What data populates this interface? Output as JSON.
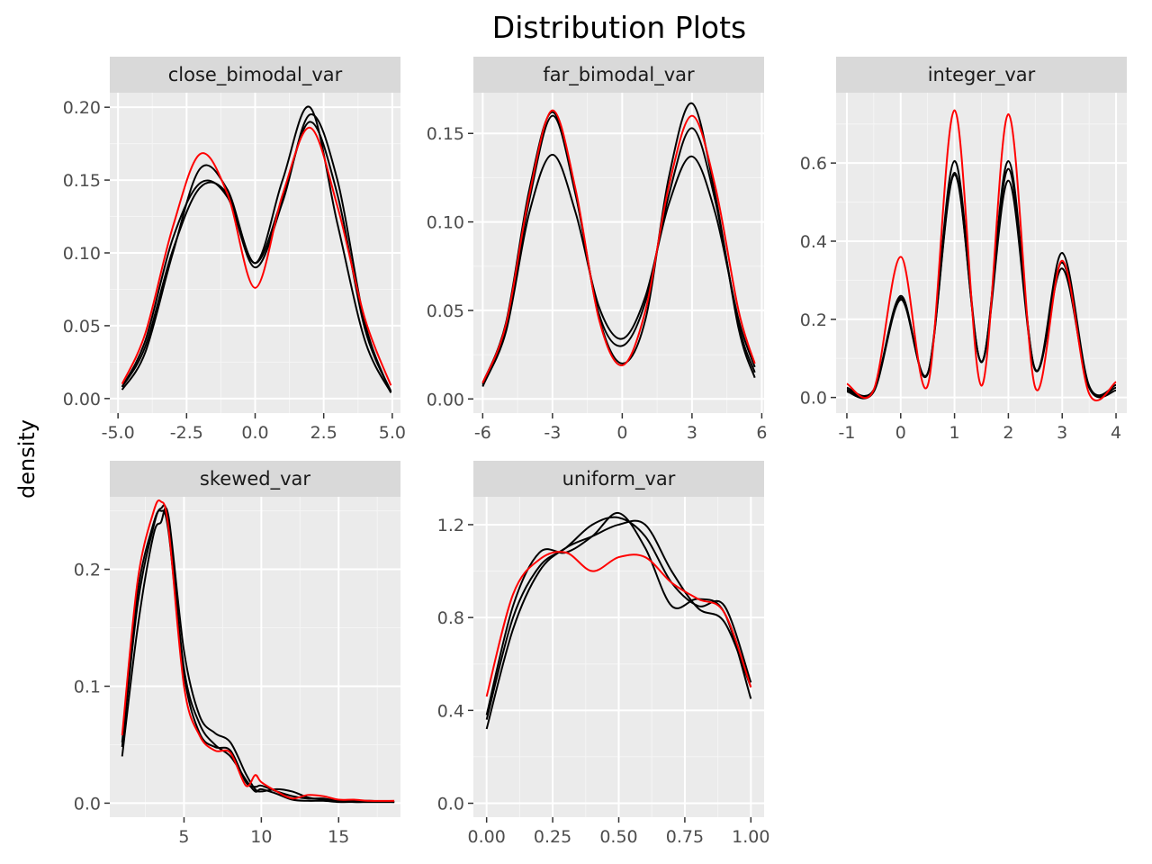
{
  "chart_data": {
    "type": "line",
    "title": "Distribution Plots",
    "ylabel": "density",
    "xlabel": "",
    "grid": true,
    "colors": {
      "panel_bg": "#EBEBEB",
      "strip_bg": "#D9D9D9",
      "grid_major": "#FFFFFF",
      "grid_minor": "#F5F5F5",
      "highlight": "#FF0000",
      "default": "#000000"
    },
    "facets": [
      {
        "label": "close_bimodal_var",
        "xlim": [
          -5.3,
          5.3
        ],
        "ylim": [
          -0.01,
          0.21
        ],
        "x_ticks": [
          -5,
          -2.5,
          0,
          2.5,
          5
        ],
        "x_tick_labels": [
          "-5.0",
          "-2.5",
          "0.0",
          "2.5",
          "5.0"
        ],
        "y_ticks": [
          0,
          0.05,
          0.1,
          0.15,
          0.2
        ],
        "y_tick_labels": [
          "0.00",
          "0.05",
          "0.10",
          "0.15",
          "0.20"
        ],
        "x": [
          -4.85,
          -4,
          -3,
          -2,
          -1,
          0,
          1,
          2,
          3,
          4,
          4.95
        ],
        "series": [
          {
            "color": "#FF0000",
            "values": [
              0.01,
              0.045,
              0.118,
              0.168,
              0.14,
              0.076,
              0.14,
              0.186,
              0.132,
              0.055,
              0.009
            ]
          },
          {
            "color": "#000000",
            "values": [
              0.008,
              0.036,
              0.102,
              0.145,
              0.14,
              0.093,
              0.138,
              0.19,
              0.14,
              0.048,
              0.005
            ]
          },
          {
            "color": "#000000",
            "values": [
              0.006,
              0.032,
              0.1,
              0.158,
              0.143,
              0.093,
              0.15,
              0.2,
              0.12,
              0.04,
              0.004
            ]
          },
          {
            "color": "#000000",
            "values": [
              0.008,
              0.04,
              0.11,
              0.148,
              0.138,
              0.09,
              0.135,
              0.195,
              0.15,
              0.052,
              0.004
            ]
          }
        ]
      },
      {
        "label": "far_bimodal_var",
        "xlim": [
          -6.4,
          6.1
        ],
        "ylim": [
          -0.008,
          0.173
        ],
        "x_ticks": [
          -6,
          -3,
          0,
          3,
          6
        ],
        "x_tick_labels": [
          "-6",
          "-3",
          "0",
          "3",
          "6"
        ],
        "y_ticks": [
          0,
          0.05,
          0.1,
          0.15
        ],
        "y_tick_labels": [
          "0.00",
          "0.05",
          "0.10",
          "0.15"
        ],
        "x": [
          -6,
          -5,
          -4,
          -3,
          -2,
          -1,
          0,
          1,
          2,
          3,
          4,
          5,
          5.7
        ],
        "series": [
          {
            "color": "#FF0000",
            "values": [
              0.009,
              0.042,
              0.115,
              0.163,
              0.118,
              0.045,
              0.019,
              0.05,
              0.12,
              0.16,
              0.12,
              0.05,
              0.02
            ]
          },
          {
            "color": "#000000",
            "values": [
              0.008,
              0.038,
              0.105,
              0.138,
              0.105,
              0.052,
              0.034,
              0.058,
              0.11,
              0.137,
              0.105,
              0.045,
              0.018
            ]
          },
          {
            "color": "#000000",
            "values": [
              0.007,
              0.04,
              0.112,
              0.16,
              0.115,
              0.048,
              0.03,
              0.055,
              0.115,
              0.153,
              0.112,
              0.042,
              0.015
            ]
          },
          {
            "color": "#000000",
            "values": [
              0.009,
              0.043,
              0.118,
              0.162,
              0.116,
              0.046,
              0.02,
              0.045,
              0.125,
              0.167,
              0.115,
              0.04,
              0.012
            ]
          }
        ]
      },
      {
        "label": "integer_var",
        "xlim": [
          -1.2,
          4.2
        ],
        "ylim": [
          -0.04,
          0.78
        ],
        "x_ticks": [
          -1,
          0,
          1,
          2,
          3,
          4
        ],
        "x_tick_labels": [
          "-1",
          "0",
          "1",
          "2",
          "3",
          "4"
        ],
        "y_ticks": [
          0,
          0.2,
          0.4,
          0.6
        ],
        "y_tick_labels": [
          "0.0",
          "0.2",
          "0.4",
          "0.6"
        ],
        "x": [
          -1,
          -0.5,
          0,
          0.5,
          1,
          1.5,
          2,
          2.5,
          3,
          3.5,
          4
        ],
        "series": [
          {
            "color": "#FF0000",
            "values": [
              0.035,
              0.02,
              0.36,
              0.03,
              0.735,
              0.03,
              0.725,
              0.025,
              0.35,
              0.01,
              0.04
            ]
          },
          {
            "color": "#000000",
            "values": [
              0.025,
              0.02,
              0.26,
              0.06,
              0.605,
              0.09,
              0.605,
              0.07,
              0.37,
              0.03,
              0.032
            ]
          },
          {
            "color": "#000000",
            "values": [
              0.02,
              0.018,
              0.255,
              0.062,
              0.575,
              0.092,
              0.585,
              0.072,
              0.345,
              0.028,
              0.025
            ]
          },
          {
            "color": "#000000",
            "values": [
              0.015,
              0.015,
              0.25,
              0.06,
              0.57,
              0.09,
              0.555,
              0.07,
              0.33,
              0.025,
              0.018
            ]
          }
        ]
      },
      {
        "label": "skewed_var",
        "xlim": [
          0.2,
          19.0
        ],
        "ylim": [
          -0.012,
          0.262
        ],
        "x_ticks": [
          5,
          10,
          15
        ],
        "x_tick_labels": [
          "5",
          "10",
          "15"
        ],
        "y_ticks": [
          0,
          0.1,
          0.2
        ],
        "y_tick_labels": [
          "0.0",
          "0.1",
          "0.2"
        ],
        "x": [
          1,
          2,
          3,
          3.5,
          4,
          5,
          6,
          7,
          8,
          9,
          9.6,
          10,
          11,
          12,
          13,
          14,
          15,
          16,
          17,
          18.6
        ],
        "series": [
          {
            "color": "#FF0000",
            "values": [
              0.058,
              0.19,
              0.248,
              0.258,
              0.235,
              0.1,
              0.058,
              0.045,
              0.043,
              0.015,
              0.024,
              0.018,
              0.01,
              0.004,
              0.007,
              0.006,
              0.003,
              0.003,
              0.002,
              0.002
            ]
          },
          {
            "color": "#000000",
            "values": [
              0.04,
              0.15,
              0.228,
              0.24,
              0.245,
              0.13,
              0.075,
              0.06,
              0.052,
              0.025,
              0.012,
              0.01,
              0.012,
              0.01,
              0.005,
              0.003,
              0.002,
              0.001,
              0.001,
              0.001
            ]
          },
          {
            "color": "#000000",
            "values": [
              0.048,
              0.17,
              0.235,
              0.252,
              0.24,
              0.115,
              0.068,
              0.05,
              0.04,
              0.02,
              0.01,
              0.012,
              0.008,
              0.003,
              0.002,
              0.002,
              0.001,
              0.001,
              0.001,
              0.001
            ]
          },
          {
            "color": "#000000",
            "values": [
              0.052,
              0.18,
              0.238,
              0.25,
              0.232,
              0.11,
              0.06,
              0.048,
              0.045,
              0.018,
              0.014,
              0.015,
              0.01,
              0.006,
              0.004,
              0.004,
              0.002,
              0.002,
              0.002,
              0.001
            ]
          }
        ]
      },
      {
        "label": "uniform_var",
        "xlim": [
          -0.05,
          1.05
        ],
        "ylim": [
          -0.06,
          1.32
        ],
        "x_ticks": [
          0,
          0.25,
          0.5,
          0.75,
          1
        ],
        "x_tick_labels": [
          "0.00",
          "0.25",
          "0.50",
          "0.75",
          "1.00"
        ],
        "y_ticks": [
          0,
          0.4,
          0.8,
          1.2
        ],
        "y_tick_labels": [
          "0.0",
          "0.4",
          "0.8",
          "1.2"
        ],
        "x": [
          0,
          0.1,
          0.2,
          0.3,
          0.4,
          0.5,
          0.6,
          0.7,
          0.8,
          0.9,
          1
        ],
        "series": [
          {
            "color": "#FF0000",
            "values": [
              0.46,
              0.9,
              1.05,
              1.08,
              1.0,
              1.06,
              1.06,
              0.95,
              0.88,
              0.82,
              0.5
            ]
          },
          {
            "color": "#000000",
            "values": [
              0.38,
              0.85,
              1.08,
              1.08,
              1.15,
              1.25,
              1.1,
              0.85,
              0.88,
              0.82,
              0.45
            ]
          },
          {
            "color": "#000000",
            "values": [
              0.36,
              0.8,
              1.02,
              1.1,
              1.2,
              1.23,
              1.15,
              0.95,
              0.85,
              0.85,
              0.52
            ]
          },
          {
            "color": "#000000",
            "values": [
              0.32,
              0.75,
              1.0,
              1.1,
              1.15,
              1.2,
              1.2,
              1.0,
              0.84,
              0.78,
              0.5
            ]
          }
        ]
      }
    ]
  }
}
